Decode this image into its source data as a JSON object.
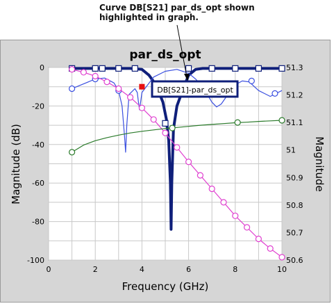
{
  "annotation": {
    "line1": "Curve DB[S21] par_ds_opt shown",
    "line2": "highlighted in graph."
  },
  "chart_data": {
    "type": "line",
    "title": "par_ds_opt",
    "xlabel": "Frequency (GHz)",
    "ylabel": "Magnitude (dB)",
    "y2label": "Magnitude",
    "xlim": [
      0,
      10
    ],
    "ylim": [
      -100,
      0
    ],
    "y2lim": [
      50.6,
      51.3
    ],
    "xticks": [
      "0",
      "2",
      "4",
      "6",
      "8",
      "10"
    ],
    "yticks": [
      "0",
      "-20",
      "-40",
      "-60",
      "-80",
      "-100"
    ],
    "y2ticks": [
      "51.3",
      "51.2",
      "51.1",
      "51",
      "50.9",
      "50.8",
      "50.7",
      "50.6"
    ],
    "grid": true,
    "tooltip": "DB[S21]-par_ds_opt",
    "colors": {
      "background": "#d6d6d6",
      "plot": "#ffffff",
      "grid": "#c8c8c8",
      "highlight": "#0f1f7a",
      "s11": "#3a4fe0",
      "pink": "#e040d0",
      "green": "#2a7a2a",
      "marker_red": "#e81010"
    },
    "series": [
      {
        "color": "#0f1f7a",
        "axis": "left",
        "marker": "square",
        "highlighted": true,
        "x": [
          1.0,
          2.0,
          3.0,
          3.5,
          4.0,
          4.3,
          4.6,
          4.9,
          5.05,
          5.15,
          5.22,
          5.25,
          5.28,
          5.35,
          5.5,
          5.8,
          6.0,
          6.3,
          6.6,
          7.0,
          8.0,
          9.0,
          10.0
        ],
        "y": [
          -0.5,
          -0.5,
          -0.5,
          -0.5,
          -1.0,
          -4.0,
          -9.0,
          -18.0,
          -27.0,
          -38.0,
          -60.0,
          -84.0,
          -60.0,
          -32.0,
          -20.0,
          -10.0,
          -4.0,
          -1.0,
          -0.5,
          -0.5,
          -0.5,
          -0.5,
          -0.5
        ],
        "markers_x": [
          1.0,
          2.0,
          2.3,
          3.0,
          3.7,
          6.0,
          7.0,
          8.0,
          9.0,
          10.0
        ],
        "markers_y": [
          -0.5,
          -0.5,
          -0.5,
          -0.5,
          -0.5,
          -0.5,
          -0.5,
          -0.5,
          -0.5,
          -0.5
        ],
        "box_marker_x": 5.0,
        "box_marker_y": -29.0
      },
      {
        "color": "#3a4fe0",
        "axis": "left",
        "marker": "circle",
        "x": [
          1.0,
          1.3,
          1.6,
          2.0,
          2.4,
          2.8,
          3.0,
          3.15,
          3.25,
          3.3,
          3.35,
          3.45,
          3.7,
          3.8,
          3.85,
          3.9,
          4.0,
          4.5,
          5.0,
          5.5,
          6.0,
          6.3,
          6.6,
          6.8,
          7.0,
          7.2,
          7.4,
          7.6,
          7.8,
          8.0,
          8.3,
          8.6,
          9.0,
          9.5,
          10.0
        ],
        "y": [
          -11.0,
          -9.5,
          -8.0,
          -6.0,
          -5.5,
          -8.0,
          -12.0,
          -20.0,
          -35.0,
          -44.0,
          -30.0,
          -14.0,
          -11.0,
          -13.0,
          -18.0,
          -22.0,
          -13.0,
          -5.0,
          -2.0,
          -1.0,
          -3.0,
          -6.0,
          -10.0,
          -14.0,
          -18.0,
          -20.5,
          -19.0,
          -15.5,
          -12.0,
          -9.0,
          -7.0,
          -7.5,
          -12.0,
          -15.0,
          -12.0
        ],
        "markers_x": [
          1.0,
          2.0,
          3.0,
          6.7,
          7.7,
          8.7,
          9.7
        ],
        "markers_y": [
          -11.0,
          -6.0,
          -12.0,
          -12.0,
          -13.5,
          -7.0,
          -13.5
        ]
      },
      {
        "color": "#e040d0",
        "axis": "left",
        "marker": "circle",
        "x": [
          1.0,
          1.5,
          2.0,
          2.5,
          3.0,
          3.5,
          4.0,
          4.5,
          5.0,
          5.5,
          6.0,
          6.5,
          7.0,
          7.5,
          8.0,
          8.5,
          9.0,
          9.5,
          10.0
        ],
        "y": [
          -1.0,
          -2.5,
          -4.5,
          -7.5,
          -11.0,
          -15.5,
          -21.0,
          -27.0,
          -34.0,
          -41.5,
          -49.0,
          -56.0,
          -63.0,
          -70.0,
          -77.0,
          -83.0,
          -89.0,
          -94.0,
          -98.5
        ],
        "markers_x": [
          1.0,
          1.5,
          2.0,
          2.5,
          3.0,
          3.5,
          4.0,
          4.5,
          5.0,
          5.5,
          6.0,
          6.5,
          7.0,
          7.5,
          8.0,
          8.5,
          9.0,
          9.5,
          10.0
        ],
        "markers_y": [
          -1.0,
          -2.5,
          -4.5,
          -7.5,
          -11.0,
          -15.5,
          -21.0,
          -27.0,
          -34.0,
          -41.5,
          -49.0,
          -56.0,
          -63.0,
          -70.0,
          -77.0,
          -83.0,
          -89.0,
          -94.0,
          -98.5
        ]
      },
      {
        "color": "#2a7a2a",
        "axis": "right",
        "marker": "circle",
        "x": [
          1.0,
          1.5,
          2.0,
          2.5,
          3.0,
          3.5,
          4.0,
          4.5,
          5.0,
          5.5,
          6.0,
          6.5,
          7.0,
          7.5,
          8.0,
          8.5,
          9.0,
          9.5,
          10.0
        ],
        "y": [
          50.992,
          51.018,
          51.034,
          51.045,
          51.054,
          51.062,
          51.068,
          51.073,
          51.078,
          51.082,
          51.086,
          51.09,
          51.093,
          51.096,
          51.099,
          51.101,
          51.104,
          51.106,
          51.108
        ],
        "markers_x": [
          1.0,
          5.3,
          8.1,
          10.0
        ],
        "markers_y": [
          50.992,
          51.08,
          51.1,
          51.108
        ]
      }
    ],
    "red_marker": {
      "x": 4.0,
      "y": -10.0
    }
  }
}
